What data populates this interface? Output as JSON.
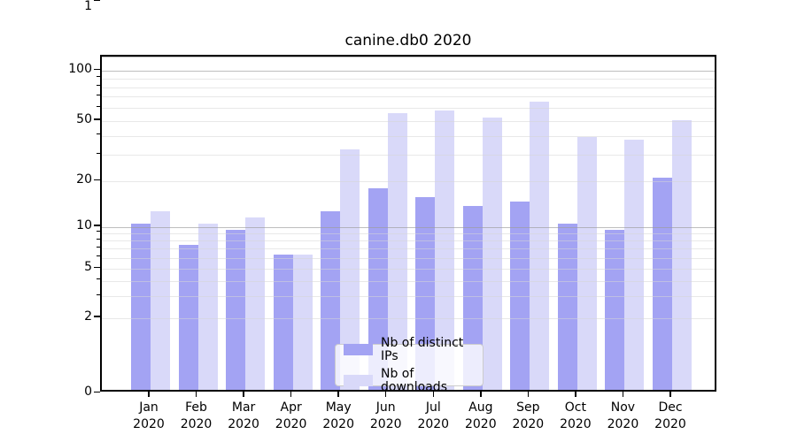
{
  "title": "canine.db0 2020",
  "colors": {
    "ips_bar": "#a3a3f3",
    "downloads_bar": "#d9d9f9",
    "axis": "#000000",
    "major_grid": "#9b9b9b",
    "minor_grid": "#d6d6d6",
    "legend_border": "#cccccc"
  },
  "y_axis": {
    "tick_labels": [
      "0",
      "1",
      "2",
      "5",
      "10",
      "20",
      "50",
      "100"
    ]
  },
  "x_axis": {
    "tick_labels": [
      "Jan\n2020",
      "Feb\n2020",
      "Mar\n2020",
      "Apr\n2020",
      "May\n2020",
      "Jun\n2020",
      "Jul\n2020",
      "Aug\n2020",
      "Sep\n2020",
      "Oct\n2020",
      "Nov\n2020",
      "Dec\n2020"
    ]
  },
  "legend": {
    "items": [
      {
        "label": "Nb of distinct IPs",
        "color_key": "ips_bar"
      },
      {
        "label": "Nb of downloads",
        "color_key": "downloads_bar"
      }
    ]
  },
  "chart_data": {
    "type": "bar",
    "title": "canine.db0 2020",
    "categories": [
      "Jan 2020",
      "Feb 2020",
      "Mar 2020",
      "Apr 2020",
      "May 2020",
      "Jun 2020",
      "Jul 2020",
      "Aug 2020",
      "Sep 2020",
      "Oct 2020",
      "Nov 2020",
      "Dec 2020"
    ],
    "series": [
      {
        "name": "Nb of distinct IPs",
        "values": [
          10,
          7,
          9,
          6,
          12,
          17,
          15,
          13,
          14,
          10,
          9,
          20
        ]
      },
      {
        "name": "Nb of downloads",
        "values": [
          12,
          10,
          11,
          6,
          31,
          53,
          55,
          50,
          62,
          37,
          36,
          48
        ]
      }
    ],
    "xlabel": "",
    "ylabel": "",
    "yscale": "symlog",
    "y_ticks": [
      0,
      1,
      2,
      5,
      10,
      20,
      50,
      100
    ],
    "ylim": [
      0,
      120
    ],
    "grid": true,
    "legend_position": "lower center-right"
  }
}
